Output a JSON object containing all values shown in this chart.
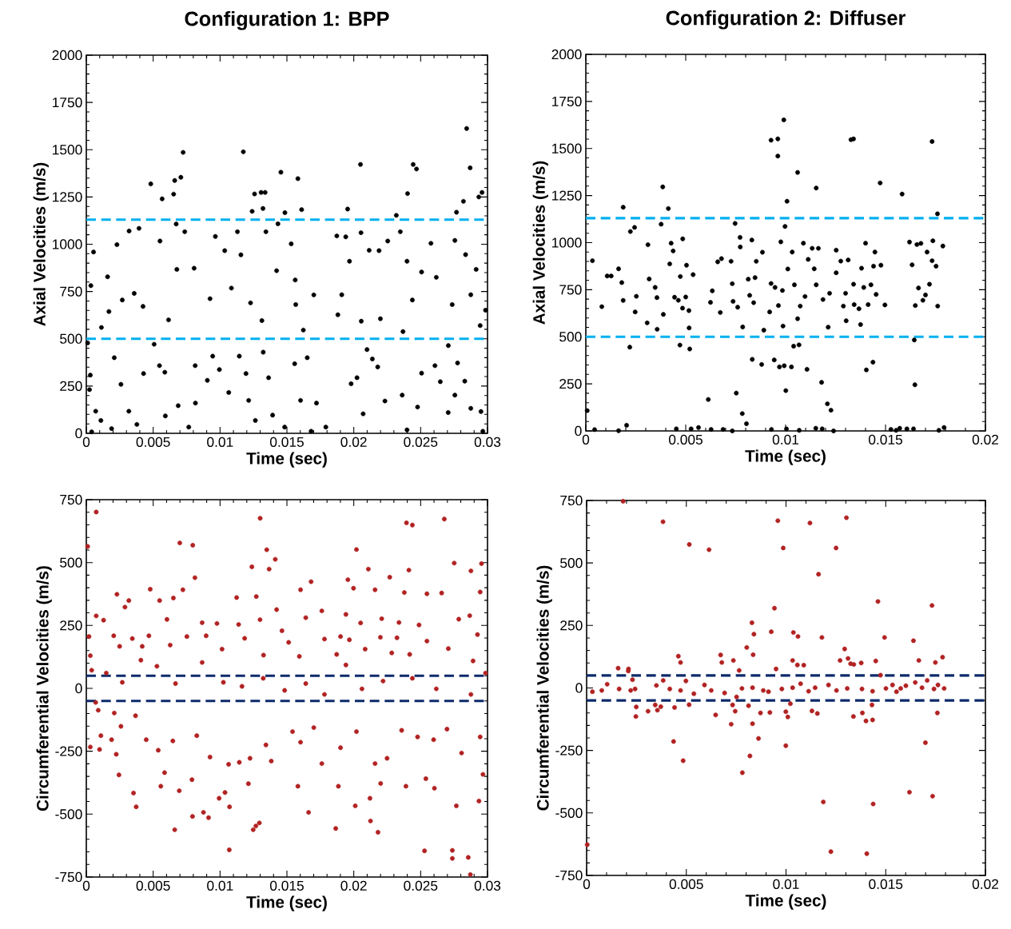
{
  "chart_data": [
    {
      "type": "scatter",
      "title": "Configuration 1: BPP",
      "xlabel": "Time (sec)",
      "ylabel": "Axial Velocities (m/s)",
      "color": "#000000",
      "marker": "circle",
      "xlim": [
        0,
        0.03
      ],
      "ylim": [
        0,
        2000
      ],
      "xticks": [
        0,
        0.005,
        0.01,
        0.015,
        0.02,
        0.025,
        0.03
      ],
      "yticks": [
        0,
        250,
        500,
        750,
        1000,
        1250,
        1500,
        1750,
        2000
      ],
      "ref_lines": [
        {
          "axis": "y",
          "value": 1130,
          "color": "#00b0f0",
          "line_style": "dashed"
        },
        {
          "axis": "y",
          "value": 500,
          "color": "#00b0f0",
          "line_style": "dashed"
        }
      ],
      "x": [
        0.00724,
        0.01174,
        0.02844,
        0.0205,
        0.02444,
        0.02469,
        0.0287,
        0.00482,
        0.00661,
        0.00707,
        0.00653,
        0.00567,
        0.01455,
        0.01582,
        0.01258,
        0.01307,
        0.01337,
        0.02402,
        0.02935,
        0.02959,
        0.0282,
        0.0124,
        0.01321,
        0.01485,
        0.0161,
        0.01954,
        0.02768,
        0.02318,
        0.00054,
        0.00229,
        0.0032,
        0.00394,
        0.00672,
        0.00736,
        0.00551,
        0.00806,
        0.00677,
        0.00159,
        0.00034,
        0.00358,
        0.00169,
        0.00269,
        0.00424,
        0.00615,
        0.00113,
        0.00965,
        0.0113,
        0.01035,
        0.01156,
        0.01085,
        0.00925,
        0.01228,
        0.01343,
        0.01433,
        0.01532,
        0.01423,
        0.01562,
        0.01701,
        0.01566,
        0.01313,
        0.01623,
        0.01873,
        0.0194,
        0.02054,
        0.02115,
        0.01968,
        0.0191,
        0.01881,
        0.02056,
        0.02189,
        0.02254,
        0.02348,
        0.02398,
        0.02507,
        0.02438,
        0.02368,
        0.02577,
        0.02756,
        0.02836,
        0.02915,
        0.02875,
        0.02985,
        0.02736,
        0.02617,
        0.02945,
        0.02199,
        0.0001,
        0.0003,
        0.00024,
        0.0007,
        0.00109,
        0.00189,
        0.0004,
        0.00209,
        0.00259,
        0.00318,
        0.00378,
        0.00428,
        0.00507,
        0.00547,
        0.00587,
        0.00591,
        0.00687,
        0.00766,
        0.00814,
        0.00816,
        0.00945,
        0.00905,
        0.00995,
        0.01065,
        0.01144,
        0.01194,
        0.01214,
        0.01264,
        0.01323,
        0.01363,
        0.01393,
        0.01483,
        0.01558,
        0.01602,
        0.01652,
        0.01681,
        0.01721,
        0.01791,
        0.0198,
        0.02024,
        0.0207,
        0.02139,
        0.02179,
        0.02233,
        0.02362,
        0.02477,
        0.02507,
        0.02607,
        0.02647,
        0.02706,
        0.02756,
        0.02776,
        0.0283,
        0.02875,
        0.02951,
        0.02965,
        0.02707,
        0.02398,
        0.02099
      ],
      "values": [
        1486,
        1489,
        1612,
        1422,
        1422,
        1398,
        1404,
        1319,
        1337,
        1354,
        1265,
        1240,
        1381,
        1347,
        1266,
        1274,
        1274,
        1268,
        1250,
        1274,
        1227,
        1174,
        1189,
        1167,
        1183,
        1186,
        1169,
        1153,
        959,
        998,
        1070,
        1084,
        1107,
        1066,
        1017,
        873,
        867,
        828,
        781,
        740,
        644,
        705,
        671,
        600,
        560,
        1041,
        1066,
        966,
        944,
        768,
        712,
        690,
        1066,
        1108,
        1002,
        860,
        811,
        732,
        681,
        596,
        546,
        1044,
        1039,
        1061,
        968,
        910,
        733,
        627,
        593,
        966,
        1017,
        1066,
        910,
        853,
        705,
        538,
        1005,
        1020,
        945,
        867,
        733,
        651,
        681,
        825,
        570,
        606,
        478,
        308,
        231,
        117,
        68,
        25,
        8,
        400,
        259,
        117,
        47,
        316,
        471,
        358,
        323,
        92,
        146,
        33,
        358,
        160,
        408,
        280,
        337,
        216,
        408,
        316,
        174,
        68,
        429,
        294,
        96,
        33,
        368,
        174,
        400,
        11,
        160,
        33,
        262,
        294,
        103,
        393,
        351,
        171,
        202,
        139,
        318,
        358,
        273,
        110,
        202,
        372,
        276,
        132,
        115,
        11,
        464,
        18,
        443
      ]
    },
    {
      "type": "scatter",
      "title": "Configuration 2: Diffuser",
      "xlabel": "Time (sec)",
      "ylabel": "Axial Velocities (m/s)",
      "color": "#000000",
      "marker": "circle",
      "xlim": [
        0,
        0.02
      ],
      "ylim": [
        0,
        2000
      ],
      "xticks": [
        0,
        0.005,
        0.01,
        0.015,
        0.02
      ],
      "yticks": [
        0,
        250,
        500,
        750,
        1000,
        1250,
        1500,
        1750,
        2000
      ],
      "ref_lines": [
        {
          "axis": "y",
          "value": 1130,
          "color": "#00b0f0",
          "line_style": "dashed"
        },
        {
          "axis": "y",
          "value": 500,
          "color": "#00b0f0",
          "line_style": "dashed"
        }
      ],
      "x": [
        0.00991,
        0.00927,
        0.00961,
        0.00961,
        0.01327,
        0.0134,
        0.01733,
        0.0106,
        0.01153,
        0.01473,
        0.01583,
        0.00385,
        0.00413,
        0.00187,
        0.01007,
        0.0176,
        0.00223,
        0.00244,
        0.00377,
        0.00033,
        0.0008,
        0.00107,
        0.00127,
        0.00164,
        0.0018,
        0.00187,
        0.00253,
        0.00247,
        0.0022,
        0.00307,
        0.00311,
        0.00317,
        0.00347,
        0.00356,
        0.00357,
        0.00388,
        0.0042,
        0.00427,
        0.00437,
        0.00444,
        0.00473,
        0.00463,
        0.00485,
        0.00484,
        0.005,
        0.00504,
        0.00516,
        0.00517,
        0.00537,
        0.00471,
        0.0052,
        0.00613,
        0.00624,
        0.00633,
        0.0066,
        0.00673,
        0.00679,
        0.00727,
        0.00733,
        0.00737,
        0.00747,
        0.00753,
        0.0076,
        0.00772,
        0.00773,
        0.00783,
        0.00785,
        0.00804,
        0.00813,
        0.0082,
        0.00831,
        0.00833,
        0.0084,
        0.00847,
        0.00853,
        0.0088,
        0.00884,
        0.00891,
        0.0092,
        0.00927,
        0.00947,
        0.00943,
        0.00964,
        0.00969,
        0.00976,
        0.00984,
        0.00987,
        0.00993,
        0.00997,
        0.01001,
        0.01011,
        0.01029,
        0.01033,
        0.0104,
        0.01044,
        0.0106,
        0.01067,
        0.01073,
        0.01089,
        0.01097,
        0.01107,
        0.01113,
        0.01133,
        0.01143,
        0.01153,
        0.01164,
        0.0118,
        0.01187,
        0.01209,
        0.01213,
        0.01227,
        0.0122,
        0.01253,
        0.01253,
        0.01276,
        0.01289,
        0.013,
        0.01303,
        0.01313,
        0.0134,
        0.01343,
        0.01367,
        0.01375,
        0.0138,
        0.01391,
        0.014,
        0.01404,
        0.01413,
        0.01427,
        0.01437,
        0.01447,
        0.0144,
        0.01453,
        0.01477,
        0.01497,
        0.0162,
        0.01633,
        0.01644,
        0.01647,
        0.01649,
        0.01657,
        0.01665,
        0.01677,
        0.01687,
        0.017,
        0.01708,
        0.0172,
        0.01733,
        0.01737,
        0.01753,
        0.01761,
        0.01787,
        7e-05,
        0.00044,
        0.00164,
        0.00204,
        0.00453,
        0.00527,
        0.00564,
        0.00627,
        0.00687,
        0.00733,
        0.00929,
        0.01004,
        0.01068,
        0.01151,
        0.01183,
        0.0124,
        0.01527,
        0.01553,
        0.01571,
        0.01607,
        0.0164,
        0.01767,
        0.01793
      ],
      "values": [
        1652,
        1544,
        1551,
        1460,
        1547,
        1551,
        1537,
        1373,
        1290,
        1317,
        1258,
        1296,
        1181,
        1188,
        1220,
        1153,
        1059,
        1081,
        1098,
        904,
        660,
        823,
        823,
        861,
        788,
        693,
        715,
        632,
        445,
        574,
        989,
        807,
        762,
        708,
        540,
        619,
        887,
        997,
        956,
        710,
        820,
        694,
        1020,
        652,
        711,
        880,
        639,
        547,
        830,
        456,
        435,
        167,
        683,
        744,
        898,
        629,
        915,
        901,
        782,
        688,
        1102,
        201,
        657,
        1028,
        977,
        92,
        552,
        38,
        806,
        720,
        1014,
        380,
        681,
        814,
        901,
        353,
        949,
        535,
        632,
        783,
        762,
        377,
        666,
        340,
        1004,
        746,
        557,
        346,
        1086,
        214,
        860,
        340,
        950,
        450,
        776,
        596,
        457,
        663,
        997,
        714,
        327,
        911,
        970,
        861,
        776,
        970,
        258,
        698,
        144,
        551,
        110,
        731,
        960,
        840,
        902,
        663,
        731,
        585,
        908,
        779,
        671,
        649,
        565,
        864,
        762,
        997,
        324,
        671,
        776,
        365,
        950,
        875,
        725,
        880,
        669,
        1003,
        882,
        483,
        245,
        666,
        990,
        759,
        996,
        694,
        722,
        950,
        779,
        904,
        1010,
        875,
        663,
        982,
        108,
        7,
        1,
        30,
        11,
        11,
        18,
        8,
        8,
        0,
        8,
        11,
        3,
        14,
        11,
        0,
        8,
        3,
        14,
        11,
        11,
        3,
        18
      ]
    },
    {
      "type": "scatter",
      "xlabel": "Time (sec)",
      "ylabel": "Circumferential Velocities (m/s)",
      "color": "#b22222",
      "marker": "circle",
      "xlim": [
        0,
        0.03
      ],
      "ylim": [
        -750,
        750
      ],
      "xticks": [
        0,
        0.005,
        0.01,
        0.015,
        0.02,
        0.025,
        0.03
      ],
      "yticks": [
        -750,
        -500,
        -250,
        0,
        250,
        500,
        750
      ],
      "ref_lines": [
        {
          "axis": "y",
          "value": 50,
          "color": "#0d2a6b",
          "line_style": "dashed"
        },
        {
          "axis": "y",
          "value": -50,
          "color": "#0d2a6b",
          "line_style": "dashed"
        }
      ],
      "x": [
        0.00074,
        0.0001,
        0.013,
        0.02394,
        0.02438,
        0.02677,
        0.00699,
        0.00796,
        0.01349,
        0.0202,
        0.01413,
        0.02751,
        0.02955,
        0.01238,
        0.01367,
        0.02412,
        0.02876,
        0.02109,
        0.00812,
        0.01681,
        0.01956,
        0.02269,
        0.00478,
        0.00722,
        0.00229,
        0.00318,
        0.00548,
        0.00651,
        0.01124,
        0.01271,
        0.01602,
        0.01998,
        0.02159,
        0.02378,
        0.02547,
        0.02657,
        0.02945,
        0.00074,
        0.00129,
        0.00289,
        0.00603,
        0.00866,
        0.00977,
        0.01299,
        0.01423,
        0.01641,
        0.01761,
        0.01941,
        0.02051,
        0.02209,
        0.02338,
        0.02488,
        0.02785,
        0.02867,
        0.0002,
        0.00205,
        0.00344,
        0.00468,
        0.00752,
        0.00896,
        0.01139,
        0.01184,
        0.01463,
        0.01781,
        0.01901,
        0.01967,
        0.02199,
        0.02323,
        0.02547,
        0.02925,
        0.0003,
        0.00249,
        0.00418,
        0.00627,
        0.01015,
        0.01325,
        0.01513,
        0.01593,
        0.01872,
        0.02085,
        0.02284,
        0.02418,
        0.02707,
        0.02892,
        0.0004,
        0.00149,
        0.00269,
        0.00408,
        0.00528,
        0.00667,
        0.00866,
        0.01025,
        0.01164,
        0.01323,
        0.01483,
        0.01641,
        0.01781,
        0.01941,
        0.02061,
        0.02219,
        0.02438,
        0.02617,
        0.02876,
        0.02985,
        0.00089,
        0.00209,
        0.00368,
        0.0007,
        0.00109,
        0.00189,
        0.00259,
        0.00224,
        0.0003,
        0.00099,
        0.00448,
        0.00538,
        0.00647,
        0.00826,
        0.00925,
        0.01064,
        0.01144,
        0.01224,
        0.01343,
        0.01383,
        0.01542,
        0.01602,
        0.01701,
        0.01761,
        0.01901,
        0.0202,
        0.02159,
        0.02249,
        0.02358,
        0.02477,
        0.02597,
        0.02697,
        0.02806,
        0.02945,
        0.00244,
        0.00353,
        0.00373,
        0.00557,
        0.00585,
        0.00661,
        0.00695,
        0.0079,
        0.00794,
        0.00876,
        0.00914,
        0.00993,
        0.01037,
        0.01071,
        0.01069,
        0.01212,
        0.01248,
        0.01268,
        0.01294,
        0.01582,
        0.01662,
        0.01865,
        0.01885,
        0.02011,
        0.02121,
        0.02125,
        0.02181,
        0.02201,
        0.0239,
        0.02529,
        0.02539,
        0.02603,
        0.02737,
        0.02737,
        0.02767,
        0.02856,
        0.02872,
        0.02936,
        0.02966
      ],
      "values": [
        701,
        564,
        676,
        658,
        649,
        673,
        578,
        569,
        551,
        552,
        513,
        498,
        496,
        483,
        474,
        470,
        467,
        474,
        440,
        424,
        432,
        442,
        394,
        392,
        374,
        349,
        349,
        359,
        361,
        365,
        392,
        398,
        392,
        381,
        376,
        379,
        383,
        288,
        271,
        323,
        274,
        261,
        258,
        273,
        313,
        281,
        308,
        294,
        260,
        277,
        262,
        252,
        275,
        289,
        206,
        209,
        198,
        209,
        206,
        209,
        254,
        199,
        229,
        196,
        206,
        193,
        203,
        201,
        188,
        214,
        130,
        167,
        167,
        172,
        156,
        132,
        183,
        127,
        135,
        156,
        141,
        135,
        158,
        109,
        72,
        61,
        24,
        112,
        88,
        19,
        103,
        24,
        8,
        40,
        -8,
        19,
        -24,
        93,
        -2,
        29,
        40,
        -2,
        -24,
        61,
        -87,
        -98,
        -109,
        -56,
        -188,
        -204,
        -151,
        -262,
        -233,
        -243,
        -204,
        -246,
        -209,
        -188,
        -273,
        -302,
        -294,
        -278,
        -225,
        -289,
        -172,
        -214,
        -156,
        -299,
        -236,
        -172,
        -299,
        -278,
        -167,
        -193,
        -204,
        -162,
        -257,
        -193,
        -344,
        -416,
        -471,
        -389,
        -335,
        -562,
        -407,
        -363,
        -509,
        -493,
        -514,
        -437,
        -414,
        -471,
        -642,
        -379,
        -562,
        -547,
        -535,
        -389,
        -493,
        -557,
        -389,
        -467,
        -437,
        -527,
        -572,
        -378,
        -389,
        -646,
        -359,
        -397,
        -644,
        -676,
        -467,
        -672,
        -740,
        -448,
        -342
      ]
    },
    {
      "type": "scatter",
      "xlabel": "Time (sec)",
      "ylabel": "Circumferential Velocities (m/s)",
      "color": "#b22222",
      "marker": "circle",
      "xlim": [
        0,
        0.02
      ],
      "ylim": [
        -750,
        750
      ],
      "xticks": [
        0,
        0.005,
        0.01,
        0.015,
        0.02
      ],
      "yticks": [
        -750,
        -500,
        -250,
        0,
        250,
        500,
        750
      ],
      "ref_lines": [
        {
          "axis": "y",
          "value": 50,
          "color": "#0d2a6b",
          "line_style": "dashed"
        },
        {
          "axis": "y",
          "value": -50,
          "color": "#0d2a6b",
          "line_style": "dashed"
        }
      ],
      "x": [
        0.00183,
        0.00383,
        0.00959,
        0.0112,
        0.01303,
        0.00515,
        0.00614,
        0.00986,
        0.01251,
        0.01163,
        0.01461,
        0.01732,
        0.00942,
        0.00829,
        0.00839,
        0.00926,
        0.01037,
        0.0106,
        0.0118,
        0.01494,
        0.01639,
        0.00803,
        0.00835,
        0.01294,
        0.0046,
        0.00471,
        0.00672,
        0.00678,
        0.00736,
        0.00765,
        0.0095,
        0.01033,
        0.01057,
        0.01089,
        0.01271,
        0.01311,
        0.01324,
        0.0134,
        0.01377,
        0.0145,
        0.01666,
        0.01749,
        0.01785,
        0.00158,
        0.00209,
        0.0021,
        0.00384,
        0.00029,
        0.00076,
        0.00103,
        0.00163,
        0.00221,
        0.00243,
        0.0035,
        0.00417,
        0.00471,
        0.00498,
        0.00538,
        0.00591,
        0.00625,
        0.00692,
        0.00752,
        0.00779,
        0.00832,
        0.00886,
        0.00912,
        0.00979,
        0.01033,
        0.01073,
        0.01113,
        0.01146,
        0.01213,
        0.01253,
        0.01307,
        0.01381,
        0.01434,
        0.01501,
        0.01534,
        0.01554,
        0.01575,
        0.01601,
        0.01648,
        0.01682,
        0.01708,
        0.01742,
        0.01762,
        0.01793,
        0.0023,
        0.01474,
        0.00247,
        0.00249,
        0.00308,
        0.00344,
        0.00355,
        0.00372,
        0.00441,
        0.00514,
        0.00647,
        0.00725,
        0.00732,
        0.00745,
        0.00812,
        0.00832,
        0.00872,
        0.00919,
        0.00999,
        0.01009,
        0.01022,
        0.0113,
        0.01157,
        0.01338,
        0.01383,
        0.01401,
        0.01434,
        0.01431,
        0.01759,
        0.00862,
        0.00436,
        0.00999,
        0.01699,
        0.00484,
        0.00819,
        0.00781,
        0.01187,
        0.01437,
        0.01619,
        0.01735,
        0.01225,
        0.01405,
        3e-05
      ],
      "values": [
        747,
        665,
        669,
        660,
        681,
        574,
        553,
        560,
        560,
        455,
        346,
        330,
        319,
        261,
        215,
        225,
        222,
        206,
        202,
        202,
        189,
        162,
        133,
        156,
        127,
        102,
        132,
        102,
        110,
        70,
        76,
        110,
        92,
        91,
        110,
        118,
        97,
        94,
        100,
        108,
        110,
        102,
        123,
        79,
        68,
        76,
        30,
        -15,
        -10,
        15,
        -4,
        -10,
        -4,
        10,
        -4,
        -10,
        28,
        -23,
        12,
        -10,
        -20,
        -36,
        -2,
        1,
        -10,
        -15,
        -4,
        1,
        17,
        -13,
        1,
        12,
        -10,
        -2,
        -4,
        -13,
        -2,
        12,
        -15,
        -2,
        9,
        22,
        1,
        30,
        -4,
        12,
        -2,
        33,
        51,
        -114,
        -76,
        -93,
        -68,
        -89,
        -75,
        -78,
        -67,
        -108,
        -145,
        -68,
        -93,
        -71,
        -143,
        -100,
        -98,
        -95,
        -116,
        -63,
        -92,
        -102,
        -114,
        -100,
        -132,
        -128,
        -68,
        -100,
        -202,
        -214,
        -231,
        -219,
        -291,
        -272,
        -339,
        -456,
        -464,
        -417,
        -433,
        -655,
        -663,
        -627
      ]
    }
  ]
}
